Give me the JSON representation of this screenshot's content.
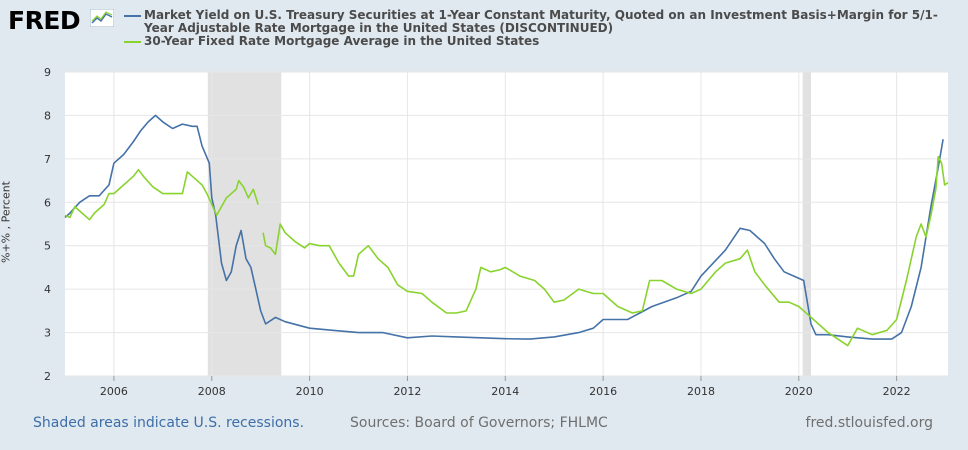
{
  "header": {
    "logo_text": "FRED",
    "logo_icon": "line-chart-icon"
  },
  "colors": {
    "background": "#e1e9f0",
    "plot_background": "#ffffff",
    "treasury_series": "#4572a7",
    "mortgage_series": "#89d32e",
    "recession_shading": "#e1e1e1",
    "link": "#3c6ea8"
  },
  "chart_data": {
    "type": "line",
    "ylabel": "%+% , Percent",
    "ylim": [
      2,
      9
    ],
    "y_ticks": [
      "2",
      "3",
      "4",
      "5",
      "6",
      "7",
      "8",
      "9"
    ],
    "x_ticks": [
      "2006",
      "2008",
      "2010",
      "2012",
      "2014",
      "2016",
      "2018",
      "2020",
      "2022"
    ],
    "x_tick_values": [
      2006,
      2008,
      2010,
      2012,
      2014,
      2016,
      2018,
      2020,
      2022
    ],
    "xlim": [
      2005,
      2023.05
    ],
    "grid": true,
    "legend_placement": "top",
    "recessions": [
      {
        "start": 2007.92,
        "end": 2009.42
      },
      {
        "start": 2020.08,
        "end": 2020.25
      }
    ],
    "series": [
      {
        "name": "Market Yield on U.S. Treasury Securities at 1-Year Constant Maturity, Quoted on an Investment Basis+Margin for 5/1-Year Adjustable Rate Mortgage in the United States (DISCONTINUED)",
        "color": "#4572a7",
        "segments": [
          [
            [
              2005.0,
              5.65
            ],
            [
              2005.1,
              5.75
            ],
            [
              2005.3,
              6.0
            ],
            [
              2005.5,
              6.15
            ],
            [
              2005.7,
              6.15
            ],
            [
              2005.9,
              6.4
            ],
            [
              2006.0,
              6.9
            ],
            [
              2006.2,
              7.1
            ],
            [
              2006.4,
              7.4
            ],
            [
              2006.55,
              7.65
            ],
            [
              2006.7,
              7.85
            ],
            [
              2006.85,
              8.0
            ],
            [
              2007.0,
              7.85
            ],
            [
              2007.2,
              7.7
            ],
            [
              2007.4,
              7.8
            ],
            [
              2007.6,
              7.75
            ],
            [
              2007.7,
              7.75
            ],
            [
              2007.8,
              7.3
            ],
            [
              2007.95,
              6.9
            ],
            [
              2008.0,
              6.1
            ],
            [
              2008.08,
              5.7
            ],
            [
              2008.2,
              4.6
            ],
            [
              2008.3,
              4.2
            ],
            [
              2008.4,
              4.4
            ],
            [
              2008.5,
              5.0
            ],
            [
              2008.6,
              5.35
            ],
            [
              2008.7,
              4.7
            ],
            [
              2008.8,
              4.5
            ],
            [
              2008.9,
              4.0
            ],
            [
              2009.0,
              3.5
            ],
            [
              2009.1,
              3.2
            ],
            [
              2009.3,
              3.35
            ],
            [
              2009.5,
              3.25
            ],
            [
              2010.0,
              3.1
            ],
            [
              2010.5,
              3.05
            ],
            [
              2011.0,
              3.0
            ],
            [
              2011.5,
              3.0
            ],
            [
              2012.0,
              2.88
            ],
            [
              2012.5,
              2.92
            ],
            [
              2013.0,
              2.9
            ],
            [
              2013.5,
              2.88
            ],
            [
              2014.0,
              2.86
            ],
            [
              2014.5,
              2.85
            ],
            [
              2015.0,
              2.9
            ],
            [
              2015.5,
              3.0
            ],
            [
              2015.8,
              3.1
            ],
            [
              2016.0,
              3.3
            ],
            [
              2016.5,
              3.3
            ],
            [
              2017.0,
              3.6
            ],
            [
              2017.5,
              3.8
            ],
            [
              2017.8,
              3.95
            ],
            [
              2018.0,
              4.3
            ],
            [
              2018.5,
              4.9
            ],
            [
              2018.8,
              5.4
            ],
            [
              2019.0,
              5.35
            ],
            [
              2019.3,
              5.05
            ],
            [
              2019.5,
              4.7
            ],
            [
              2019.7,
              4.4
            ],
            [
              2019.9,
              4.3
            ],
            [
              2020.1,
              4.2
            ],
            [
              2020.25,
              3.2
            ],
            [
              2020.35,
              2.95
            ],
            [
              2020.6,
              2.95
            ],
            [
              2021.0,
              2.9
            ],
            [
              2021.5,
              2.85
            ],
            [
              2021.9,
              2.85
            ],
            [
              2022.1,
              3.0
            ],
            [
              2022.3,
              3.6
            ],
            [
              2022.5,
              4.5
            ],
            [
              2022.7,
              5.9
            ],
            [
              2022.85,
              6.8
            ],
            [
              2022.95,
              7.45
            ]
          ]
        ]
      },
      {
        "name": "30-Year Fixed Rate Mortgage Average in the United States",
        "color": "#89d32e",
        "segments": [
          [
            [
              2005.0,
              5.7
            ],
            [
              2005.1,
              5.65
            ],
            [
              2005.2,
              5.9
            ],
            [
              2005.3,
              5.8
            ],
            [
              2005.5,
              5.6
            ],
            [
              2005.6,
              5.75
            ],
            [
              2005.8,
              5.95
            ],
            [
              2005.9,
              6.2
            ],
            [
              2006.0,
              6.2
            ],
            [
              2006.2,
              6.4
            ],
            [
              2006.4,
              6.6
            ],
            [
              2006.5,
              6.75
            ],
            [
              2006.6,
              6.6
            ],
            [
              2006.8,
              6.35
            ],
            [
              2007.0,
              6.2
            ],
            [
              2007.2,
              6.2
            ],
            [
              2007.4,
              6.2
            ],
            [
              2007.5,
              6.7
            ],
            [
              2007.6,
              6.6
            ],
            [
              2007.8,
              6.4
            ],
            [
              2007.9,
              6.2
            ],
            [
              2008.1,
              5.7
            ],
            [
              2008.2,
              5.9
            ],
            [
              2008.3,
              6.1
            ],
            [
              2008.5,
              6.3
            ],
            [
              2008.55,
              6.5
            ],
            [
              2008.65,
              6.35
            ],
            [
              2008.75,
              6.1
            ],
            [
              2008.85,
              6.3
            ],
            [
              2008.95,
              5.95
            ]
          ],
          [
            [
              2009.05,
              5.3
            ],
            [
              2009.1,
              5.0
            ],
            [
              2009.2,
              4.95
            ],
            [
              2009.3,
              4.8
            ],
            [
              2009.4,
              5.5
            ],
            [
              2009.5,
              5.3
            ],
            [
              2009.7,
              5.1
            ],
            [
              2009.9,
              4.95
            ],
            [
              2010.0,
              5.05
            ],
            [
              2010.2,
              5.0
            ],
            [
              2010.4,
              5.0
            ],
            [
              2010.6,
              4.6
            ],
            [
              2010.8,
              4.3
            ],
            [
              2010.9,
              4.3
            ],
            [
              2011.0,
              4.8
            ],
            [
              2011.2,
              5.0
            ],
            [
              2011.4,
              4.7
            ],
            [
              2011.6,
              4.5
            ],
            [
              2011.8,
              4.1
            ],
            [
              2012.0,
              3.95
            ],
            [
              2012.3,
              3.9
            ],
            [
              2012.5,
              3.7
            ],
            [
              2012.8,
              3.45
            ],
            [
              2013.0,
              3.45
            ],
            [
              2013.2,
              3.5
            ],
            [
              2013.4,
              4.0
            ],
            [
              2013.5,
              4.5
            ],
            [
              2013.7,
              4.4
            ],
            [
              2013.9,
              4.45
            ],
            [
              2014.0,
              4.5
            ],
            [
              2014.3,
              4.3
            ],
            [
              2014.6,
              4.2
            ],
            [
              2014.8,
              4.0
            ],
            [
              2015.0,
              3.7
            ],
            [
              2015.2,
              3.75
            ],
            [
              2015.5,
              4.0
            ],
            [
              2015.8,
              3.9
            ],
            [
              2016.0,
              3.9
            ],
            [
              2016.3,
              3.6
            ],
            [
              2016.6,
              3.45
            ],
            [
              2016.8,
              3.5
            ],
            [
              2016.95,
              4.2
            ],
            [
              2017.2,
              4.2
            ],
            [
              2017.5,
              4.0
            ],
            [
              2017.8,
              3.9
            ],
            [
              2018.0,
              4.0
            ],
            [
              2018.3,
              4.4
            ],
            [
              2018.5,
              4.6
            ],
            [
              2018.8,
              4.7
            ],
            [
              2018.95,
              4.9
            ],
            [
              2019.1,
              4.4
            ],
            [
              2019.3,
              4.1
            ],
            [
              2019.6,
              3.7
            ],
            [
              2019.8,
              3.7
            ],
            [
              2020.0,
              3.6
            ],
            [
              2020.2,
              3.4
            ],
            [
              2020.4,
              3.2
            ],
            [
              2020.6,
              3.0
            ],
            [
              2020.8,
              2.85
            ],
            [
              2021.0,
              2.7
            ],
            [
              2021.2,
              3.1
            ],
            [
              2021.5,
              2.95
            ],
            [
              2021.8,
              3.05
            ],
            [
              2022.0,
              3.3
            ],
            [
              2022.2,
              4.2
            ],
            [
              2022.4,
              5.2
            ],
            [
              2022.5,
              5.5
            ],
            [
              2022.6,
              5.2
            ],
            [
              2022.7,
              5.7
            ],
            [
              2022.8,
              6.3
            ],
            [
              2022.85,
              7.05
            ],
            [
              2022.92,
              6.9
            ],
            [
              2022.98,
              6.4
            ],
            [
              2023.05,
              6.45
            ]
          ]
        ]
      }
    ]
  },
  "footer": {
    "recession_note": "Shaded areas indicate U.S. recessions.",
    "sources": "Sources: Board of Governors; FHLMC",
    "site": "fred.stlouisfed.org"
  }
}
